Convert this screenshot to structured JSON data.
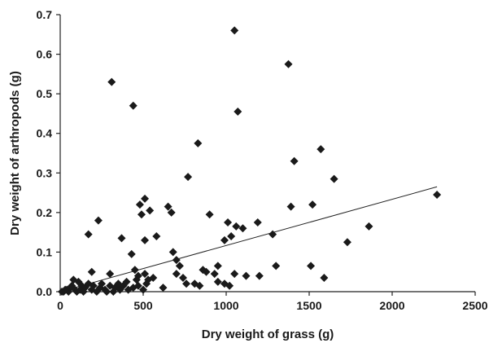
{
  "chart_data": {
    "type": "scatter",
    "xlabel": "Dry  weight of grass (g)",
    "ylabel": "Dry weight of arthropods (g)",
    "xlim": [
      0,
      2500
    ],
    "ylim": [
      0,
      0.7
    ],
    "x_ticks": [
      "0",
      "500",
      "1000",
      "1500",
      "2000",
      "2500"
    ],
    "y_ticks": [
      "0.0",
      "0.1",
      "0.2",
      "0.3",
      "0.4",
      "0.5",
      "0.6",
      "0.7"
    ],
    "x_tick_values": [
      0,
      500,
      1000,
      1500,
      2000,
      2500
    ],
    "y_tick_values": [
      0,
      0.1,
      0.2,
      0.3,
      0.4,
      0.5,
      0.6,
      0.7
    ],
    "grid": false,
    "marker": "diamond",
    "marker_color": "#1a1a1a",
    "trendline": {
      "x": [
        0,
        2270
      ],
      "y": [
        0.0,
        0.265
      ]
    },
    "points": [
      [
        1050,
        0.66
      ],
      [
        1375,
        0.575
      ],
      [
        310,
        0.53
      ],
      [
        440,
        0.47
      ],
      [
        1070,
        0.455
      ],
      [
        830,
        0.375
      ],
      [
        1570,
        0.36
      ],
      [
        1410,
        0.33
      ],
      [
        770,
        0.29
      ],
      [
        1650,
        0.285
      ],
      [
        2270,
        0.245
      ],
      [
        510,
        0.235
      ],
      [
        480,
        0.22
      ],
      [
        650,
        0.215
      ],
      [
        1390,
        0.215
      ],
      [
        1520,
        0.22
      ],
      [
        230,
        0.18
      ],
      [
        490,
        0.195
      ],
      [
        540,
        0.205
      ],
      [
        670,
        0.2
      ],
      [
        900,
        0.195
      ],
      [
        1010,
        0.175
      ],
      [
        1060,
        0.165
      ],
      [
        1190,
        0.175
      ],
      [
        1100,
        0.16
      ],
      [
        1860,
        0.165
      ],
      [
        170,
        0.145
      ],
      [
        580,
        0.14
      ],
      [
        1030,
        0.14
      ],
      [
        1280,
        0.145
      ],
      [
        370,
        0.135
      ],
      [
        510,
        0.13
      ],
      [
        990,
        0.13
      ],
      [
        1730,
        0.125
      ],
      [
        680,
        0.1
      ],
      [
        430,
        0.095
      ],
      [
        700,
        0.08
      ],
      [
        720,
        0.065
      ],
      [
        1300,
        0.065
      ],
      [
        1510,
        0.065
      ],
      [
        950,
        0.065
      ],
      [
        860,
        0.055
      ],
      [
        880,
        0.05
      ],
      [
        930,
        0.045
      ],
      [
        1050,
        0.045
      ],
      [
        1120,
        0.04
      ],
      [
        1200,
        0.04
      ],
      [
        1590,
        0.035
      ],
      [
        190,
        0.05
      ],
      [
        300,
        0.045
      ],
      [
        450,
        0.055
      ],
      [
        470,
        0.04
      ],
      [
        510,
        0.045
      ],
      [
        530,
        0.03
      ],
      [
        740,
        0.035
      ],
      [
        760,
        0.02
      ],
      [
        810,
        0.02
      ],
      [
        840,
        0.015
      ],
      [
        950,
        0.025
      ],
      [
        990,
        0.02
      ],
      [
        1020,
        0.015
      ],
      [
        700,
        0.045
      ],
      [
        620,
        0.01
      ],
      [
        80,
        0.03
      ],
      [
        110,
        0.025
      ],
      [
        130,
        0.015
      ],
      [
        150,
        0.01
      ],
      [
        60,
        0.01
      ],
      [
        40,
        0.005
      ],
      [
        90,
        0.005
      ],
      [
        170,
        0.02
      ],
      [
        200,
        0.015
      ],
      [
        240,
        0.01
      ],
      [
        270,
        0.005
      ],
      [
        300,
        0.015
      ],
      [
        330,
        0.01
      ],
      [
        350,
        0.02
      ],
      [
        380,
        0.015
      ],
      [
        410,
        0.005
      ],
      [
        440,
        0.01
      ],
      [
        470,
        0.015
      ],
      [
        500,
        0.005
      ],
      [
        20,
        0.0
      ],
      [
        50,
        0.0
      ],
      [
        70,
        0.015
      ],
      [
        100,
        0.0
      ],
      [
        120,
        0.005
      ],
      [
        140,
        0.0
      ],
      [
        190,
        0.005
      ],
      [
        220,
        0.0
      ],
      [
        250,
        0.02
      ],
      [
        280,
        0.0
      ],
      [
        320,
        0.0
      ],
      [
        360,
        0.005
      ],
      [
        400,
        0.025
      ],
      [
        460,
        0.03
      ],
      [
        520,
        0.02
      ],
      [
        560,
        0.035
      ],
      [
        10,
        0.0
      ],
      [
        30,
        0.005
      ]
    ]
  }
}
